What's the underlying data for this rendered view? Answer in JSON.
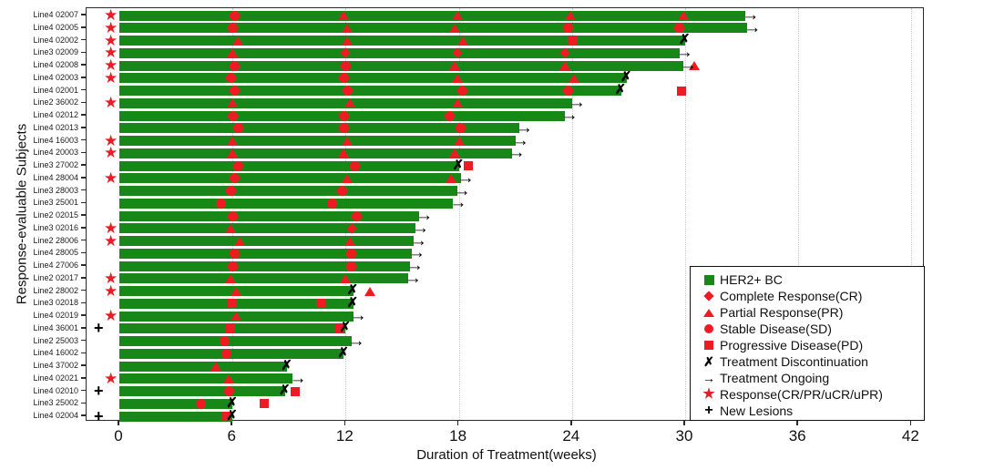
{
  "axes": {
    "x_title": "Duration of Treatment(weeks)",
    "y_title": "Response-evaluable Subjects",
    "x_ticks": [
      0,
      6,
      12,
      18,
      24,
      30,
      36,
      42
    ],
    "x_range": [
      0,
      42
    ],
    "grid": "vertical-dotted"
  },
  "colors": {
    "bar_green": "#178717",
    "marker_red": "#ed1c24",
    "marker_black": "#000000"
  },
  "legend": {
    "position": "bottom-right",
    "items": [
      {
        "key": "bar",
        "label": "HER2+ BC"
      },
      {
        "key": "CR",
        "label": "Complete Response(CR)"
      },
      {
        "key": "PR",
        "label": "Partial Response(PR)"
      },
      {
        "key": "SD",
        "label": "Stable Disease(SD)"
      },
      {
        "key": "PD",
        "label": "Progressive Disease(PD)"
      },
      {
        "key": "X",
        "label": "Treatment Discontinuation"
      },
      {
        "key": "arrow",
        "label": "Treatment Ongoing"
      },
      {
        "key": "star",
        "label": "Response(CR/PR/uCR/uPR)"
      },
      {
        "key": "plus",
        "label": "New Lesions"
      }
    ]
  },
  "chart_data": {
    "type": "bar",
    "subtype": "swimmer-plot",
    "unit": "weeks",
    "marker_types": {
      "CR": "red-diamond",
      "PR": "red-triangle",
      "SD": "red-circle",
      "PD": "red-square"
    },
    "subjects": [
      {
        "label": "Line4 02007",
        "pre": "star",
        "end": 33.2,
        "end_marker": "ongoing",
        "events": [
          {
            "w": 6.1,
            "t": "SD"
          },
          {
            "w": 11.9,
            "t": "PR"
          },
          {
            "w": 17.9,
            "t": "PR"
          },
          {
            "w": 23.9,
            "t": "PR"
          },
          {
            "w": 29.9,
            "t": "PR"
          }
        ],
        "post": []
      },
      {
        "label": "Line4 02005",
        "pre": "star",
        "end": 33.3,
        "end_marker": "ongoing",
        "events": [
          {
            "w": 6.0,
            "t": "SD"
          },
          {
            "w": 12.1,
            "t": "PR"
          },
          {
            "w": 17.8,
            "t": "PR"
          },
          {
            "w": 23.8,
            "t": "SD"
          },
          {
            "w": 29.7,
            "t": "SD"
          }
        ],
        "post": []
      },
      {
        "label": "Line4 02002",
        "pre": "star",
        "end": 30.0,
        "end_marker": "discontinued",
        "events": [
          {
            "w": 6.3,
            "t": "PR"
          },
          {
            "w": 12.1,
            "t": "PR"
          },
          {
            "w": 18.2,
            "t": "PR"
          },
          {
            "w": 24.0,
            "t": "PD"
          }
        ],
        "post": []
      },
      {
        "label": "Line3 02009",
        "pre": "star",
        "end": 29.7,
        "end_marker": "ongoing",
        "events": [
          {
            "w": 6.0,
            "t": "PR"
          },
          {
            "w": 12.0,
            "t": "CR"
          },
          {
            "w": 17.9,
            "t": "CR"
          },
          {
            "w": 23.6,
            "t": "CR"
          }
        ],
        "post": []
      },
      {
        "label": "Line4 02008",
        "pre": "star",
        "end": 29.9,
        "end_marker": "ongoing",
        "events": [
          {
            "w": 6.1,
            "t": "SD"
          },
          {
            "w": 12.0,
            "t": "SD"
          },
          {
            "w": 17.8,
            "t": "PR"
          },
          {
            "w": 23.6,
            "t": "PR"
          }
        ],
        "post": [
          {
            "w": 30.5,
            "t": "PR"
          }
        ]
      },
      {
        "label": "Line4 02003",
        "pre": "star",
        "end": 26.9,
        "end_marker": "discontinued",
        "events": [
          {
            "w": 5.9,
            "t": "SD"
          },
          {
            "w": 11.9,
            "t": "SD"
          },
          {
            "w": 17.9,
            "t": "PR"
          },
          {
            "w": 24.1,
            "t": "PR"
          }
        ],
        "post": []
      },
      {
        "label": "Line4 02001",
        "pre": null,
        "end": 26.6,
        "end_marker": "discontinued",
        "events": [
          {
            "w": 6.1,
            "t": "SD"
          },
          {
            "w": 12.1,
            "t": "SD"
          },
          {
            "w": 18.2,
            "t": "SD"
          },
          {
            "w": 23.8,
            "t": "SD"
          }
        ],
        "post": [
          {
            "w": 29.8,
            "t": "PD"
          }
        ]
      },
      {
        "label": "Line2 36002",
        "pre": "star",
        "end": 24.0,
        "end_marker": "ongoing",
        "events": [
          {
            "w": 6.0,
            "t": "PR"
          },
          {
            "w": 12.2,
            "t": "PR"
          },
          {
            "w": 17.9,
            "t": "PR"
          }
        ],
        "post": []
      },
      {
        "label": "Line4 02012",
        "pre": null,
        "end": 23.6,
        "end_marker": "ongoing",
        "events": [
          {
            "w": 6.0,
            "t": "SD"
          },
          {
            "w": 11.9,
            "t": "SD"
          },
          {
            "w": 17.5,
            "t": "SD"
          }
        ],
        "post": []
      },
      {
        "label": "Line4 02013",
        "pre": null,
        "end": 21.2,
        "end_marker": "ongoing",
        "events": [
          {
            "w": 6.3,
            "t": "SD"
          },
          {
            "w": 11.9,
            "t": "SD"
          },
          {
            "w": 18.1,
            "t": "SD"
          }
        ],
        "post": []
      },
      {
        "label": "Line4 16003",
        "pre": "star",
        "end": 21.0,
        "end_marker": "ongoing",
        "events": [
          {
            "w": 6.0,
            "t": "PR"
          },
          {
            "w": 12.1,
            "t": "PR"
          },
          {
            "w": 18.0,
            "t": "PR"
          }
        ],
        "post": []
      },
      {
        "label": "Line4 20003",
        "pre": "star",
        "end": 20.8,
        "end_marker": "ongoing",
        "events": [
          {
            "w": 6.0,
            "t": "PR"
          },
          {
            "w": 11.9,
            "t": "PR"
          },
          {
            "w": 17.8,
            "t": "PR"
          }
        ],
        "post": []
      },
      {
        "label": "Line3 27002",
        "pre": null,
        "end": 18.0,
        "end_marker": "discontinued",
        "events": [
          {
            "w": 6.3,
            "t": "SD"
          },
          {
            "w": 12.5,
            "t": "SD"
          }
        ],
        "post": [
          {
            "w": 18.5,
            "t": "PD"
          }
        ]
      },
      {
        "label": "Line4 28004",
        "pre": "star",
        "end": 18.1,
        "end_marker": "ongoing",
        "events": [
          {
            "w": 6.1,
            "t": "SD"
          },
          {
            "w": 12.1,
            "t": "PR"
          },
          {
            "w": 17.6,
            "t": "PR"
          }
        ],
        "post": []
      },
      {
        "label": "Line3 28003",
        "pre": null,
        "end": 17.9,
        "end_marker": "ongoing",
        "events": [
          {
            "w": 5.9,
            "t": "SD"
          },
          {
            "w": 11.8,
            "t": "SD"
          }
        ],
        "post": []
      },
      {
        "label": "Line3 25001",
        "pre": null,
        "end": 17.7,
        "end_marker": "ongoing",
        "events": [
          {
            "w": 5.4,
            "t": "SD"
          },
          {
            "w": 11.3,
            "t": "SD"
          }
        ],
        "post": []
      },
      {
        "label": "Line2 02015",
        "pre": null,
        "end": 15.9,
        "end_marker": "ongoing",
        "events": [
          {
            "w": 6.0,
            "t": "SD"
          },
          {
            "w": 12.6,
            "t": "SD"
          }
        ],
        "post": []
      },
      {
        "label": "Line3 02016",
        "pre": "star",
        "end": 15.7,
        "end_marker": "ongoing",
        "events": [
          {
            "w": 5.9,
            "t": "PR"
          },
          {
            "w": 12.3,
            "t": "CR"
          }
        ],
        "post": []
      },
      {
        "label": "Line2 28006",
        "pre": "star",
        "end": 15.6,
        "end_marker": "ongoing",
        "events": [
          {
            "w": 6.4,
            "t": "PR"
          },
          {
            "w": 12.2,
            "t": "PR"
          }
        ],
        "post": []
      },
      {
        "label": "Line4 28005",
        "pre": null,
        "end": 15.5,
        "end_marker": "ongoing",
        "events": [
          {
            "w": 6.1,
            "t": "SD"
          },
          {
            "w": 12.3,
            "t": "SD"
          }
        ],
        "post": []
      },
      {
        "label": "Line4 27006",
        "pre": null,
        "end": 15.4,
        "end_marker": "ongoing",
        "events": [
          {
            "w": 6.0,
            "t": "SD"
          },
          {
            "w": 12.3,
            "t": "SD"
          }
        ],
        "post": []
      },
      {
        "label": "Line2 02017",
        "pre": "star",
        "end": 15.3,
        "end_marker": "ongoing",
        "events": [
          {
            "w": 5.9,
            "t": "PR"
          },
          {
            "w": 12.0,
            "t": "PR"
          }
        ],
        "post": []
      },
      {
        "label": "Line2 28002",
        "pre": "star",
        "end": 12.4,
        "end_marker": "discontinued",
        "events": [
          {
            "w": 6.2,
            "t": "PR"
          }
        ],
        "post": [
          {
            "w": 13.3,
            "t": "PR"
          }
        ]
      },
      {
        "label": "Line3 02018",
        "pre": null,
        "end": 12.4,
        "end_marker": "discontinued",
        "events": [
          {
            "w": 6.0,
            "t": "PD"
          },
          {
            "w": 10.7,
            "t": "PD"
          }
        ],
        "post": []
      },
      {
        "label": "Line4 02019",
        "pre": "star",
        "end": 12.4,
        "end_marker": "ongoing",
        "events": [
          {
            "w": 6.2,
            "t": "PR"
          }
        ],
        "post": []
      },
      {
        "label": "Line4 36001",
        "pre": "plus",
        "end": 12.0,
        "end_marker": "discontinued",
        "events": [
          {
            "w": 5.9,
            "t": "PD"
          },
          {
            "w": 11.7,
            "t": "PD"
          }
        ],
        "post": []
      },
      {
        "label": "Line2 25003",
        "pre": null,
        "end": 12.3,
        "end_marker": "ongoing",
        "events": [
          {
            "w": 5.6,
            "t": "SD"
          }
        ],
        "post": []
      },
      {
        "label": "Line4 16002",
        "pre": null,
        "end": 11.9,
        "end_marker": "discontinued",
        "events": [
          {
            "w": 5.7,
            "t": "SD"
          }
        ],
        "post": []
      },
      {
        "label": "Line4 37002",
        "pre": null,
        "end": 8.9,
        "end_marker": "discontinued",
        "events": [
          {
            "w": 5.1,
            "t": "PR"
          }
        ],
        "post": []
      },
      {
        "label": "Line4 02021",
        "pre": "star",
        "end": 9.2,
        "end_marker": "ongoing",
        "events": [
          {
            "w": 5.8,
            "t": "PR"
          }
        ],
        "post": []
      },
      {
        "label": "Line4 02010",
        "pre": "plus",
        "end": 8.8,
        "end_marker": "discontinued",
        "events": [
          {
            "w": 5.8,
            "t": "SD"
          }
        ],
        "post": [
          {
            "w": 9.3,
            "t": "PD"
          }
        ]
      },
      {
        "label": "Line3 25002",
        "pre": null,
        "end": 6.0,
        "end_marker": "discontinued",
        "events": [
          {
            "w": 4.3,
            "t": "SD"
          }
        ],
        "post": [
          {
            "w": 7.7,
            "t": "PD"
          }
        ]
      },
      {
        "label": "Line4 02004",
        "pre": "plus",
        "end": 6.0,
        "end_marker": "discontinued",
        "events": [
          {
            "w": 5.7,
            "t": "PD"
          }
        ],
        "post": []
      }
    ]
  }
}
